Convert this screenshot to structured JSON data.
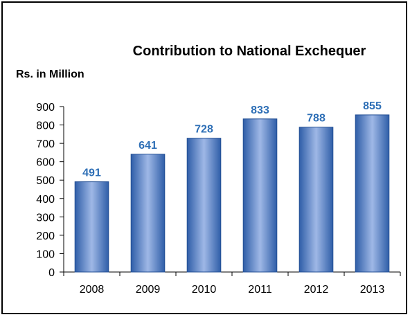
{
  "chart_data": {
    "type": "bar",
    "title": "Contribution to National Exchequer",
    "unit_label": "Rs. in Million",
    "categories": [
      "2008",
      "2009",
      "2010",
      "2011",
      "2012",
      "2013"
    ],
    "values": [
      491,
      641,
      728,
      833,
      788,
      855
    ],
    "ylim": [
      0,
      900
    ],
    "yticks": [
      "0",
      "100",
      "200",
      "300",
      "400",
      "500",
      "600",
      "700",
      "800",
      "900"
    ],
    "grid": false,
    "legend": "none",
    "colors": {
      "bar_light": "#9fb8e6",
      "bar_dark": "#2f5ea8",
      "bar_edge": "#234f94",
      "data_label": "#2e6fb6",
      "axis": "#000000"
    }
  }
}
